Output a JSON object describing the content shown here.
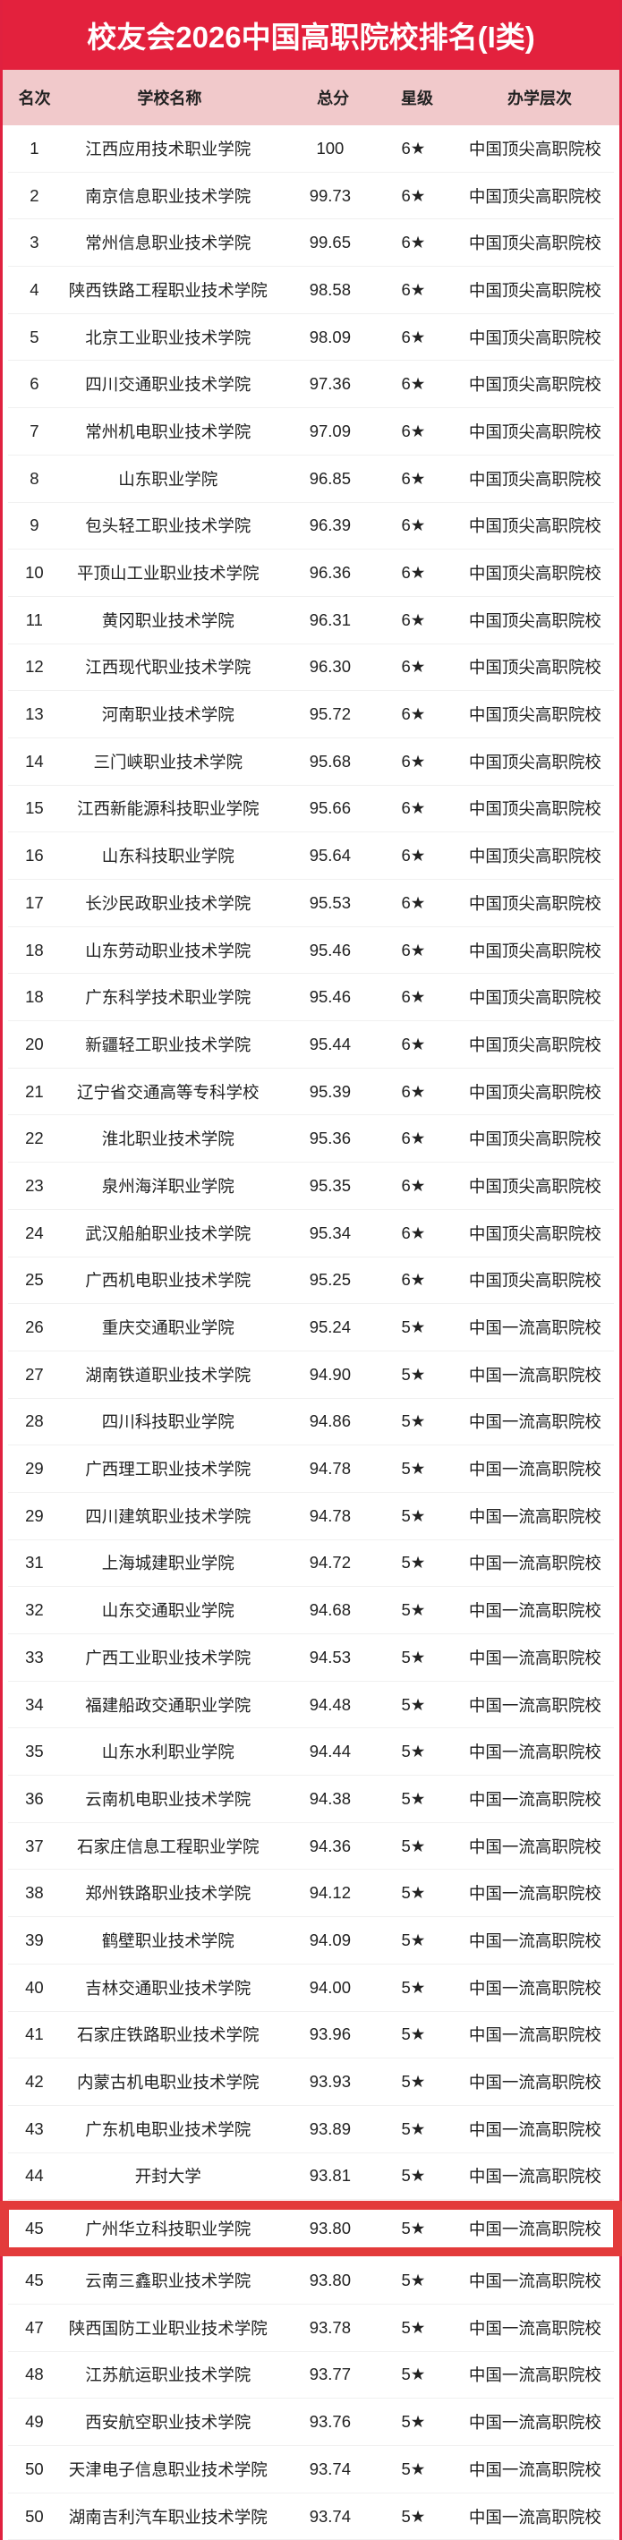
{
  "title": "校友会2026中国高职院校排名(I类)",
  "highlight_color": "#e33b3b",
  "brand_color": "#e3213d",
  "columns": {
    "rank": "名次",
    "name": "学校名称",
    "score": "总分",
    "star": "星级",
    "level": "办学层次"
  },
  "highlighted_row_index": 44,
  "rows": [
    {
      "rank": "1",
      "name": "江西应用技术职业学院",
      "score": "100",
      "star": "6★",
      "level": "中国顶尖高职院校"
    },
    {
      "rank": "2",
      "name": "南京信息职业技术学院",
      "score": "99.73",
      "star": "6★",
      "level": "中国顶尖高职院校"
    },
    {
      "rank": "3",
      "name": "常州信息职业技术学院",
      "score": "99.65",
      "star": "6★",
      "level": "中国顶尖高职院校"
    },
    {
      "rank": "4",
      "name": "陕西铁路工程职业技术学院",
      "score": "98.58",
      "star": "6★",
      "level": "中国顶尖高职院校"
    },
    {
      "rank": "5",
      "name": "北京工业职业技术学院",
      "score": "98.09",
      "star": "6★",
      "level": "中国顶尖高职院校"
    },
    {
      "rank": "6",
      "name": "四川交通职业技术学院",
      "score": "97.36",
      "star": "6★",
      "level": "中国顶尖高职院校"
    },
    {
      "rank": "7",
      "name": "常州机电职业技术学院",
      "score": "97.09",
      "star": "6★",
      "level": "中国顶尖高职院校"
    },
    {
      "rank": "8",
      "name": "山东职业学院",
      "score": "96.85",
      "star": "6★",
      "level": "中国顶尖高职院校"
    },
    {
      "rank": "9",
      "name": "包头轻工职业技术学院",
      "score": "96.39",
      "star": "6★",
      "level": "中国顶尖高职院校"
    },
    {
      "rank": "10",
      "name": "平顶山工业职业技术学院",
      "score": "96.36",
      "star": "6★",
      "level": "中国顶尖高职院校"
    },
    {
      "rank": "11",
      "name": "黄冈职业技术学院",
      "score": "96.31",
      "star": "6★",
      "level": "中国顶尖高职院校"
    },
    {
      "rank": "12",
      "name": "江西现代职业技术学院",
      "score": "96.30",
      "star": "6★",
      "level": "中国顶尖高职院校"
    },
    {
      "rank": "13",
      "name": "河南职业技术学院",
      "score": "95.72",
      "star": "6★",
      "level": "中国顶尖高职院校"
    },
    {
      "rank": "14",
      "name": "三门峡职业技术学院",
      "score": "95.68",
      "star": "6★",
      "level": "中国顶尖高职院校"
    },
    {
      "rank": "15",
      "name": "江西新能源科技职业学院",
      "score": "95.66",
      "star": "6★",
      "level": "中国顶尖高职院校"
    },
    {
      "rank": "16",
      "name": "山东科技职业学院",
      "score": "95.64",
      "star": "6★",
      "level": "中国顶尖高职院校"
    },
    {
      "rank": "17",
      "name": "长沙民政职业技术学院",
      "score": "95.53",
      "star": "6★",
      "level": "中国顶尖高职院校"
    },
    {
      "rank": "18",
      "name": "山东劳动职业技术学院",
      "score": "95.46",
      "star": "6★",
      "level": "中国顶尖高职院校"
    },
    {
      "rank": "18",
      "name": "广东科学技术职业学院",
      "score": "95.46",
      "star": "6★",
      "level": "中国顶尖高职院校"
    },
    {
      "rank": "20",
      "name": "新疆轻工职业技术学院",
      "score": "95.44",
      "star": "6★",
      "level": "中国顶尖高职院校"
    },
    {
      "rank": "21",
      "name": "辽宁省交通高等专科学校",
      "score": "95.39",
      "star": "6★",
      "level": "中国顶尖高职院校"
    },
    {
      "rank": "22",
      "name": "淮北职业技术学院",
      "score": "95.36",
      "star": "6★",
      "level": "中国顶尖高职院校"
    },
    {
      "rank": "23",
      "name": "泉州海洋职业学院",
      "score": "95.35",
      "star": "6★",
      "level": "中国顶尖高职院校"
    },
    {
      "rank": "24",
      "name": "武汉船舶职业技术学院",
      "score": "95.34",
      "star": "6★",
      "level": "中国顶尖高职院校"
    },
    {
      "rank": "25",
      "name": "广西机电职业技术学院",
      "score": "95.25",
      "star": "6★",
      "level": "中国顶尖高职院校"
    },
    {
      "rank": "26",
      "name": "重庆交通职业学院",
      "score": "95.24",
      "star": "5★",
      "level": "中国一流高职院校"
    },
    {
      "rank": "27",
      "name": "湖南铁道职业技术学院",
      "score": "94.90",
      "star": "5★",
      "level": "中国一流高职院校"
    },
    {
      "rank": "28",
      "name": "四川科技职业学院",
      "score": "94.86",
      "star": "5★",
      "level": "中国一流高职院校"
    },
    {
      "rank": "29",
      "name": "广西理工职业技术学院",
      "score": "94.78",
      "star": "5★",
      "level": "中国一流高职院校"
    },
    {
      "rank": "29",
      "name": "四川建筑职业技术学院",
      "score": "94.78",
      "star": "5★",
      "level": "中国一流高职院校"
    },
    {
      "rank": "31",
      "name": "上海城建职业学院",
      "score": "94.72",
      "star": "5★",
      "level": "中国一流高职院校"
    },
    {
      "rank": "32",
      "name": "山东交通职业学院",
      "score": "94.68",
      "star": "5★",
      "level": "中国一流高职院校"
    },
    {
      "rank": "33",
      "name": "广西工业职业技术学院",
      "score": "94.53",
      "star": "5★",
      "level": "中国一流高职院校"
    },
    {
      "rank": "34",
      "name": "福建船政交通职业学院",
      "score": "94.48",
      "star": "5★",
      "level": "中国一流高职院校"
    },
    {
      "rank": "35",
      "name": "山东水利职业学院",
      "score": "94.44",
      "star": "5★",
      "level": "中国一流高职院校"
    },
    {
      "rank": "36",
      "name": "云南机电职业技术学院",
      "score": "94.38",
      "star": "5★",
      "level": "中国一流高职院校"
    },
    {
      "rank": "37",
      "name": "石家庄信息工程职业学院",
      "score": "94.36",
      "star": "5★",
      "level": "中国一流高职院校"
    },
    {
      "rank": "38",
      "name": "郑州铁路职业技术学院",
      "score": "94.12",
      "star": "5★",
      "level": "中国一流高职院校"
    },
    {
      "rank": "39",
      "name": "鹤壁职业技术学院",
      "score": "94.09",
      "star": "5★",
      "level": "中国一流高职院校"
    },
    {
      "rank": "40",
      "name": "吉林交通职业技术学院",
      "score": "94.00",
      "star": "5★",
      "level": "中国一流高职院校"
    },
    {
      "rank": "41",
      "name": "石家庄铁路职业技术学院",
      "score": "93.96",
      "star": "5★",
      "level": "中国一流高职院校"
    },
    {
      "rank": "42",
      "name": "内蒙古机电职业技术学院",
      "score": "93.93",
      "star": "5★",
      "level": "中国一流高职院校"
    },
    {
      "rank": "43",
      "name": "广东机电职业技术学院",
      "score": "93.89",
      "star": "5★",
      "level": "中国一流高职院校"
    },
    {
      "rank": "44",
      "name": "开封大学",
      "score": "93.81",
      "star": "5★",
      "level": "中国一流高职院校"
    },
    {
      "rank": "45",
      "name": "广州华立科技职业学院",
      "score": "93.80",
      "star": "5★",
      "level": "中国一流高职院校"
    },
    {
      "rank": "45",
      "name": "云南三鑫职业技术学院",
      "score": "93.80",
      "star": "5★",
      "level": "中国一流高职院校"
    },
    {
      "rank": "47",
      "name": "陕西国防工业职业技术学院",
      "score": "93.78",
      "star": "5★",
      "level": "中国一流高职院校"
    },
    {
      "rank": "48",
      "name": "江苏航运职业技术学院",
      "score": "93.77",
      "star": "5★",
      "level": "中国一流高职院校"
    },
    {
      "rank": "49",
      "name": "西安航空职业技术学院",
      "score": "93.76",
      "star": "5★",
      "level": "中国一流高职院校"
    },
    {
      "rank": "50",
      "name": "天津电子信息职业技术学院",
      "score": "93.74",
      "star": "5★",
      "level": "中国一流高职院校"
    },
    {
      "rank": "50",
      "name": "湖南吉利汽车职业技术学院",
      "score": "93.74",
      "star": "5★",
      "level": "中国一流高职院校"
    }
  ]
}
